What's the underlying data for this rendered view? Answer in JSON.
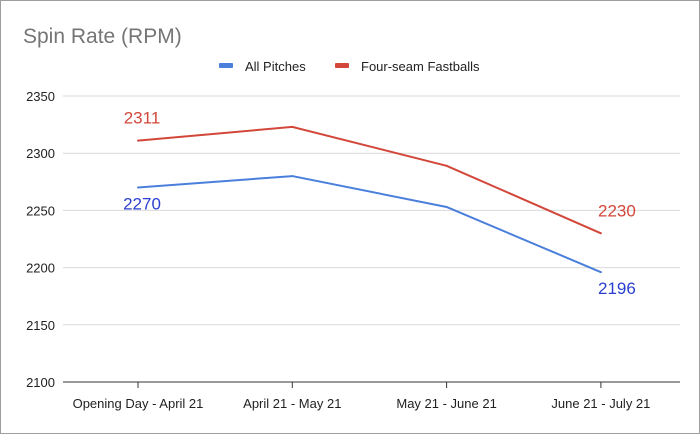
{
  "chart_data": {
    "type": "line",
    "title": "Spin Rate (RPM)",
    "xlabel": "",
    "ylabel": "",
    "categories": [
      "Opening Day - April 21",
      "April 21 - May 21",
      "May 21 - June 21",
      "June 21 - July 21"
    ],
    "ylim": [
      2100,
      2350
    ],
    "yticks": [
      2100,
      2150,
      2200,
      2250,
      2300,
      2350
    ],
    "grid": true,
    "legend_position": "top",
    "series": [
      {
        "name": "All Pitches",
        "color": "#4a7fdc",
        "values": [
          2270,
          2280,
          2253,
          2196
        ],
        "labels": [
          "2270",
          "",
          "",
          "2196"
        ],
        "label_color": "#2a3fcf"
      },
      {
        "name": "Four-seam Fastballs",
        "color": "#d2473a",
        "values": [
          2311,
          2323,
          2289,
          2230
        ],
        "labels": [
          "2311",
          "",
          "",
          "2230"
        ],
        "label_color": "#d2473a"
      }
    ]
  }
}
